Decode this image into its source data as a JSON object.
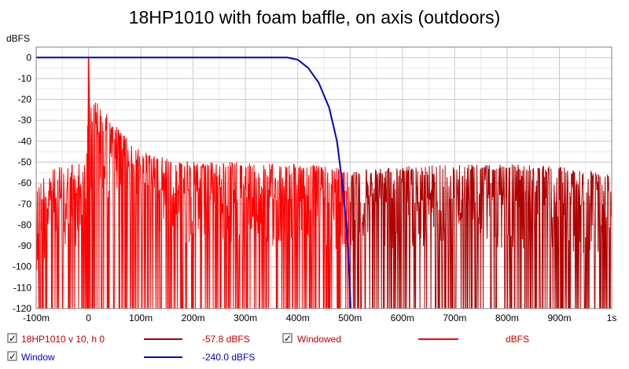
{
  "chart_data": {
    "type": "line",
    "title": "18HP1010 with foam baffle, on axis (outdoors)",
    "ylabel": "dBFS",
    "xlabel": "",
    "xlim": [
      -100,
      1000
    ],
    "ylim": [
      -120,
      5
    ],
    "x_ticks": [
      {
        "value": -100,
        "label": "-100m"
      },
      {
        "value": 0,
        "label": "0"
      },
      {
        "value": 100,
        "label": "100m"
      },
      {
        "value": 200,
        "label": "200m"
      },
      {
        "value": 300,
        "label": "300m"
      },
      {
        "value": 400,
        "label": "400m"
      },
      {
        "value": 500,
        "label": "500m"
      },
      {
        "value": 600,
        "label": "600m"
      },
      {
        "value": 700,
        "label": "700m"
      },
      {
        "value": 800,
        "label": "800m"
      },
      {
        "value": 900,
        "label": "900m"
      },
      {
        "value": 1000,
        "label": "1s"
      }
    ],
    "y_ticks": [
      {
        "value": 0,
        "label": "0"
      },
      {
        "value": -10,
        "label": "-10"
      },
      {
        "value": -20,
        "label": "-20"
      },
      {
        "value": -30,
        "label": "-30"
      },
      {
        "value": -40,
        "label": "-40"
      },
      {
        "value": -50,
        "label": "-50"
      },
      {
        "value": -60,
        "label": "-60"
      },
      {
        "value": -70,
        "label": "-70"
      },
      {
        "value": -80,
        "label": "-80"
      },
      {
        "value": -90,
        "label": "-90"
      },
      {
        "value": -100,
        "label": "-100"
      },
      {
        "value": -110,
        "label": "-110"
      },
      {
        "value": -120,
        "label": "-120"
      }
    ],
    "grid": true,
    "series": [
      {
        "name": "18HP1010 v 10, h 0",
        "color": "#ff0000",
        "envelope": [
          {
            "x": -100,
            "y": -62
          },
          {
            "x": -70,
            "y": -52
          },
          {
            "x": -30,
            "y": -51
          },
          {
            "x": -5,
            "y": -50
          },
          {
            "x": 0,
            "y": 0
          },
          {
            "x": 3,
            "y": -25
          },
          {
            "x": 10,
            "y": -20
          },
          {
            "x": 30,
            "y": -25
          },
          {
            "x": 60,
            "y": -35
          },
          {
            "x": 100,
            "y": -45
          },
          {
            "x": 200,
            "y": -50
          },
          {
            "x": 300,
            "y": -50
          },
          {
            "x": 400,
            "y": -51
          },
          {
            "x": 450,
            "y": -52
          },
          {
            "x": 500,
            "y": -53
          }
        ]
      },
      {
        "name": "Windowed",
        "color": "#b00000",
        "envelope": [
          {
            "x": 500,
            "y": -54
          },
          {
            "x": 600,
            "y": -52
          },
          {
            "x": 700,
            "y": -51
          },
          {
            "x": 800,
            "y": -51
          },
          {
            "x": 900,
            "y": -52
          },
          {
            "x": 1000,
            "y": -55
          }
        ]
      },
      {
        "name": "Window",
        "color": "#0000cc",
        "points": [
          {
            "x": -100,
            "y": 0
          },
          {
            "x": 380,
            "y": 0
          },
          {
            "x": 400,
            "y": -1
          },
          {
            "x": 420,
            "y": -5
          },
          {
            "x": 440,
            "y": -12
          },
          {
            "x": 460,
            "y": -24
          },
          {
            "x": 475,
            "y": -40
          },
          {
            "x": 485,
            "y": -60
          },
          {
            "x": 493,
            "y": -80
          },
          {
            "x": 498,
            "y": -100
          },
          {
            "x": 501,
            "y": -120
          }
        ]
      }
    ],
    "legend": [
      {
        "checked": "✓",
        "name": "18HP1010 v 10, h 0",
        "value": "-57.8 dBFS",
        "color": "#b00000",
        "text_color": "#cc0000"
      },
      {
        "checked": "✓",
        "name": "Windowed",
        "value": "dBFS",
        "color": "#ff0000",
        "text_color": "#cc0000"
      },
      {
        "checked": "✓",
        "name": "Window",
        "value": "-240.0 dBFS",
        "color": "#0000cc",
        "text_color": "#0000cc"
      }
    ]
  }
}
